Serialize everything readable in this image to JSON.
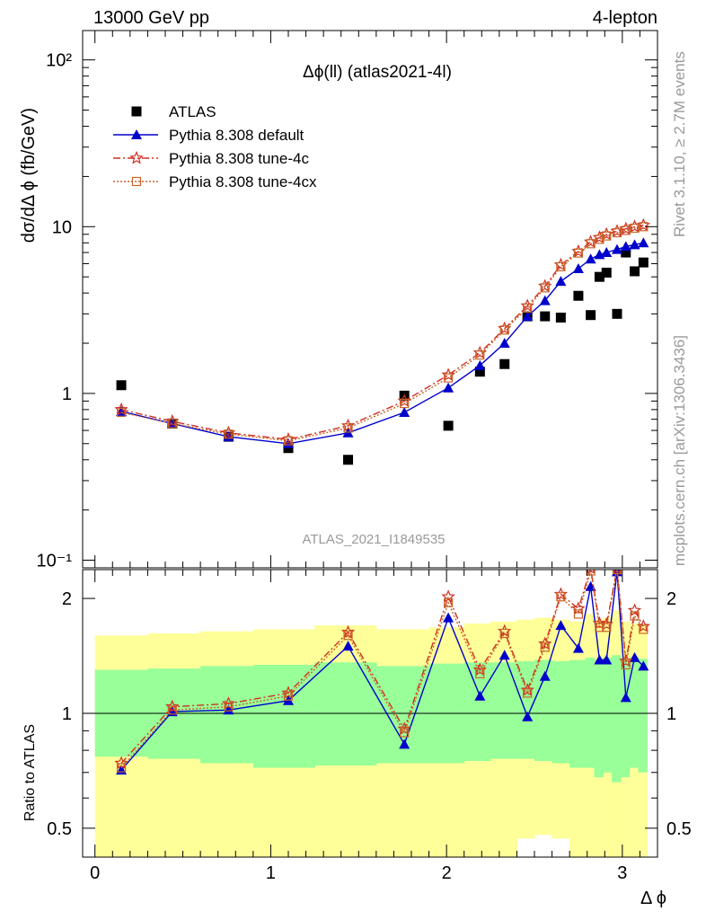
{
  "header": {
    "left": "13000 GeV pp",
    "right": "4-lepton"
  },
  "side_text": {
    "top": "Rivet 3.1.10, ≥ 2.7M events",
    "bottom": "mcplots.cern.ch [arXiv:1306.3436]"
  },
  "chart_data": [
    {
      "type": "line",
      "title": "Δϕ(ll) (atlas2021-4l)",
      "watermark": "ATLAS_2021_I1849535",
      "xlabel": "Δ ϕ",
      "ylabel": "dσ/dΔ ϕ (fb/GeV)",
      "yscale": "log",
      "xlim": [
        -0.07,
        3.2
      ],
      "ylim": [
        0.09,
        150
      ],
      "ytick_labels": [
        "10⁻¹",
        "1",
        "10",
        "10²"
      ],
      "ytick_values": [
        0.1,
        1,
        10,
        100
      ],
      "legend_position": "top-left",
      "x": [
        0.15,
        0.44,
        0.76,
        1.1,
        1.44,
        1.76,
        2.01,
        2.19,
        2.33,
        2.46,
        2.56,
        2.65,
        2.75,
        2.82,
        2.87,
        2.91,
        2.97,
        3.02,
        3.07,
        3.12
      ],
      "series": [
        {
          "name": "ATLAS",
          "style": "points",
          "color": "#000000",
          "values": [
            1.12,
            0.66,
            0.55,
            0.47,
            0.4,
            0.97,
            0.64,
            1.35,
            1.5,
            2.9,
            2.9,
            2.85,
            3.85,
            2.95,
            5.0,
            5.3,
            3.0,
            7.0,
            5.4,
            6.1
          ]
        },
        {
          "name": "Pythia 8.308 default",
          "style": "line-triangle",
          "color": "#0000cc",
          "values": [
            0.78,
            0.66,
            0.55,
            0.5,
            0.58,
            0.77,
            1.08,
            1.47,
            2.0,
            2.9,
            3.6,
            4.7,
            5.6,
            6.4,
            6.8,
            7.0,
            7.3,
            7.6,
            7.8,
            8.0
          ]
        },
        {
          "name": "Pythia 8.308 tune-4c",
          "style": "dashdot-star",
          "color": "#d03020",
          "values": [
            0.8,
            0.68,
            0.58,
            0.53,
            0.64,
            0.9,
            1.29,
            1.75,
            2.45,
            3.35,
            4.4,
            5.9,
            7.1,
            8.1,
            8.6,
            9.0,
            9.4,
            9.7,
            10.0,
            10.2
          ]
        },
        {
          "name": "Pythia 8.308 tune-4cx",
          "style": "dotted-square",
          "color": "#c86428",
          "values": [
            0.77,
            0.66,
            0.57,
            0.52,
            0.62,
            0.87,
            1.24,
            1.7,
            2.4,
            3.25,
            4.3,
            5.75,
            6.95,
            7.9,
            8.4,
            8.8,
            9.2,
            9.5,
            9.8,
            10.0
          ]
        }
      ]
    },
    {
      "type": "line",
      "xlabel": "Δ ϕ",
      "ylabel": "Ratio to ATLAS",
      "yscale": "log",
      "xlim": [
        -0.07,
        3.2
      ],
      "ylim": [
        0.42,
        2.38
      ],
      "ytick_labels": [
        "0.5",
        "1",
        "2"
      ],
      "ytick_values": [
        0.5,
        1,
        2
      ],
      "xtick_labels": [
        "0",
        "1",
        "2",
        "3"
      ],
      "xtick_values": [
        0,
        1,
        2,
        3
      ],
      "reference_line": 1,
      "x": [
        0.15,
        0.44,
        0.76,
        1.1,
        1.44,
        1.76,
        2.01,
        2.19,
        2.33,
        2.46,
        2.56,
        2.65,
        2.75,
        2.82,
        2.87,
        2.91,
        2.97,
        3.02,
        3.07,
        3.12
      ],
      "bins": [
        [
          0.0,
          0.3
        ],
        [
          0.3,
          0.6
        ],
        [
          0.6,
          0.9
        ],
        [
          0.9,
          1.25
        ],
        [
          1.25,
          1.6
        ],
        [
          1.6,
          1.9
        ],
        [
          1.9,
          2.1
        ],
        [
          2.1,
          2.25
        ],
        [
          2.25,
          2.4
        ],
        [
          2.4,
          2.5
        ],
        [
          2.5,
          2.6
        ],
        [
          2.6,
          2.7
        ],
        [
          2.7,
          2.79
        ],
        [
          2.79,
          2.84
        ],
        [
          2.84,
          2.89
        ],
        [
          2.89,
          2.94
        ],
        [
          2.94,
          2.99
        ],
        [
          2.99,
          3.04
        ],
        [
          3.04,
          3.09
        ],
        [
          3.09,
          3.14
        ]
      ],
      "band_outer": {
        "color": "#ffff99",
        "lower": [
          0.42,
          0.42,
          0.42,
          0.42,
          0.42,
          0.42,
          0.42,
          0.42,
          0.42,
          0.47,
          0.48,
          0.47,
          0.42,
          0.42,
          0.42,
          0.42,
          0.42,
          0.42,
          0.42,
          0.42
        ],
        "upper": [
          1.6,
          1.62,
          1.64,
          1.66,
          1.7,
          1.66,
          1.68,
          1.72,
          1.74,
          1.76,
          1.78,
          1.76,
          1.74,
          1.82,
          1.76,
          1.78,
          1.86,
          1.74,
          1.72,
          1.7
        ]
      },
      "band_inner": {
        "color": "#99ff99",
        "lower": [
          0.77,
          0.76,
          0.74,
          0.72,
          0.73,
          0.74,
          0.74,
          0.75,
          0.76,
          0.76,
          0.75,
          0.74,
          0.72,
          0.72,
          0.68,
          0.7,
          0.66,
          0.68,
          0.72,
          0.7
        ],
        "upper": [
          1.3,
          1.31,
          1.33,
          1.34,
          1.36,
          1.33,
          1.35,
          1.36,
          1.36,
          1.37,
          1.38,
          1.37,
          1.38,
          1.4,
          1.38,
          1.4,
          1.42,
          1.38,
          1.4,
          1.39
        ]
      },
      "series": [
        {
          "name": "Pythia 8.308 default",
          "style": "line-triangle",
          "color": "#0000cc",
          "values": [
            0.71,
            1.01,
            1.02,
            1.08,
            1.5,
            0.83,
            1.78,
            1.11,
            1.42,
            0.98,
            1.25,
            1.7,
            1.48,
            2.15,
            1.38,
            1.38,
            2.35,
            1.1,
            1.4,
            1.33
          ]
        },
        {
          "name": "Pythia 8.308 tune-4c",
          "style": "dashdot-star",
          "color": "#d03020",
          "values": [
            0.74,
            1.04,
            1.06,
            1.13,
            1.63,
            0.91,
            2.02,
            1.3,
            1.64,
            1.15,
            1.52,
            2.05,
            1.88,
            2.4,
            1.72,
            1.71,
            2.4,
            1.37,
            1.86,
            1.69
          ]
        },
        {
          "name": "Pythia 8.308 tune-4cx",
          "style": "dotted-square",
          "color": "#c86428",
          "values": [
            0.72,
            1.02,
            1.04,
            1.11,
            1.6,
            0.89,
            1.95,
            1.27,
            1.62,
            1.13,
            1.49,
            2.02,
            1.82,
            2.36,
            1.68,
            1.68,
            2.38,
            1.34,
            1.8,
            1.66
          ]
        }
      ]
    }
  ]
}
